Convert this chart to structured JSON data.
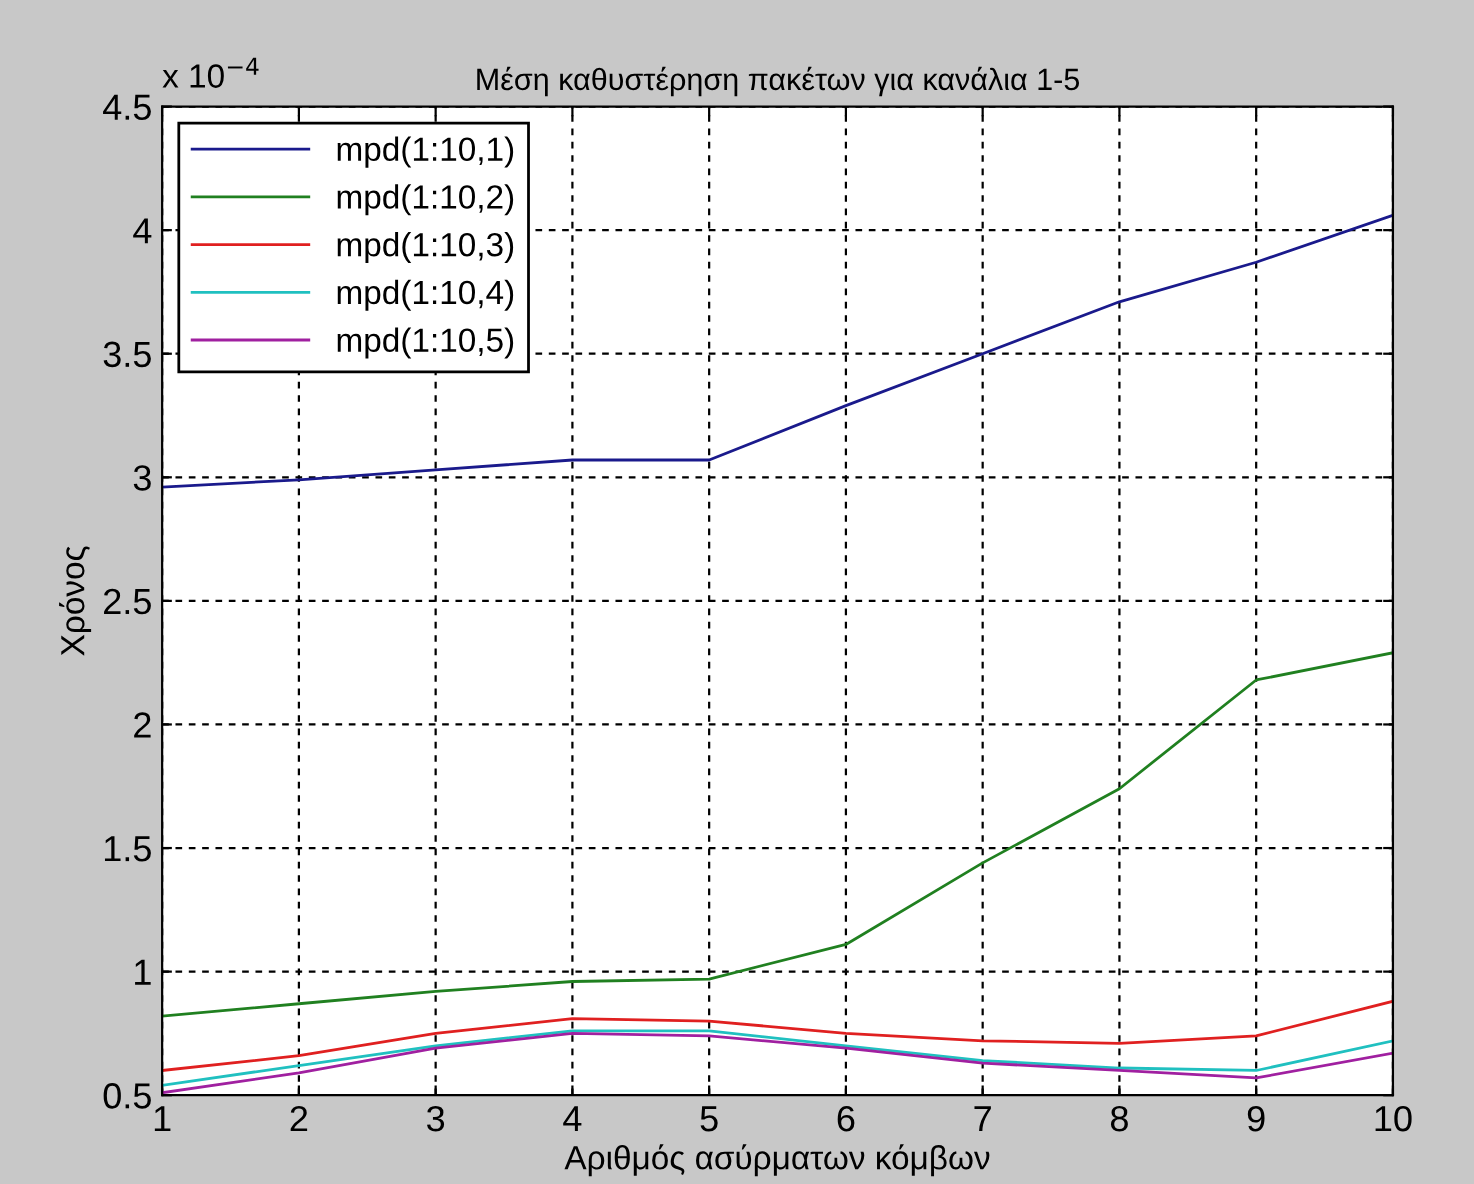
{
  "chart_data": {
    "type": "line",
    "title": "Μέση καθυστέρηση πακέτων για κανάλια 1-5",
    "xlabel": "Αριθμός ασύρματων κόμβων",
    "ylabel": "Χρόνος",
    "annotations": [
      "x 10$^{−4}$"
    ],
    "x": [
      1,
      2,
      3,
      4,
      5,
      6,
      7,
      8,
      9,
      10
    ],
    "series": [
      {
        "name": "mpd(1:10,1)",
        "color": "#1a1a8c",
        "values": [
          2.96,
          2.99,
          3.03,
          3.07,
          3.07,
          3.29,
          3.5,
          3.71,
          3.87,
          4.06
        ]
      },
      {
        "name": "mpd(1:10,2)",
        "color": "#208020",
        "values": [
          0.82,
          0.87,
          0.92,
          0.96,
          0.97,
          1.11,
          1.44,
          1.74,
          2.18,
          2.29
        ]
      },
      {
        "name": "mpd(1:10,3)",
        "color": "#e02020",
        "values": [
          0.6,
          0.66,
          0.75,
          0.81,
          0.8,
          0.75,
          0.72,
          0.71,
          0.74,
          0.88
        ]
      },
      {
        "name": "mpd(1:10,4)",
        "color": "#20c0c0",
        "values": [
          0.54,
          0.62,
          0.7,
          0.76,
          0.76,
          0.7,
          0.64,
          0.61,
          0.6,
          0.72
        ]
      },
      {
        "name": "mpd(1:10,5)",
        "color": "#a020a0",
        "values": [
          0.51,
          0.59,
          0.69,
          0.75,
          0.74,
          0.69,
          0.63,
          0.6,
          0.57,
          0.67
        ]
      }
    ],
    "xlim": [
      1,
      10
    ],
    "xticks": [
      1,
      2,
      3,
      4,
      5,
      6,
      7,
      8,
      9,
      10
    ],
    "ylim": [
      0.5,
      4.5
    ],
    "yticks": [
      0.5,
      1,
      1.5,
      2,
      2.5,
      3,
      3.5,
      4,
      4.5
    ],
    "grid": true,
    "legend": "top left",
    "line_style": "solid",
    "marker": "none"
  }
}
